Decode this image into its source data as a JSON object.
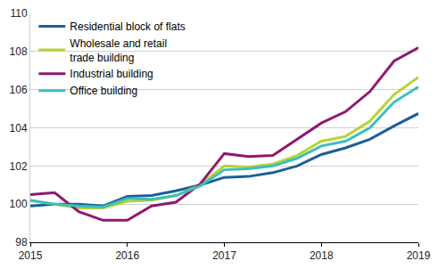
{
  "chart_data": {
    "type": "line",
    "categories": [
      "2015",
      null,
      null,
      null,
      "2016",
      null,
      null,
      null,
      "2017",
      null,
      null,
      null,
      "2018",
      null,
      null,
      null,
      "2019"
    ],
    "series": [
      {
        "name": "Residential block of flats",
        "color": "#1c5f98",
        "values": [
          99.9,
          100.0,
          100.0,
          99.9,
          100.4,
          100.45,
          100.7,
          101.0,
          101.4,
          101.45,
          101.65,
          102.0,
          102.6,
          102.95,
          103.4,
          104.1,
          104.75
        ]
      },
      {
        "name": "Wholesale and retail\ntrade building",
        "color": "#b7d334",
        "values": [
          100.2,
          100.0,
          99.8,
          99.8,
          100.15,
          100.2,
          100.45,
          101.0,
          102.0,
          101.95,
          102.1,
          102.55,
          103.3,
          103.55,
          104.35,
          105.75,
          106.65
        ]
      },
      {
        "name": "Industrial building",
        "color": "#8e1a6f",
        "values": [
          100.5,
          100.6,
          99.6,
          99.15,
          99.15,
          99.9,
          100.1,
          101.05,
          102.65,
          102.5,
          102.55,
          103.4,
          104.25,
          104.85,
          105.9,
          107.5,
          108.2
        ]
      },
      {
        "name": "Office building",
        "color": "#3bbfbf",
        "values": [
          100.2,
          100.0,
          99.9,
          99.85,
          100.3,
          100.25,
          100.45,
          100.95,
          101.8,
          101.85,
          102.0,
          102.4,
          103.05,
          103.3,
          104.0,
          105.35,
          106.15
        ]
      }
    ],
    "ylim": [
      98,
      110
    ],
    "yticks": [
      98,
      100,
      102,
      104,
      106,
      108,
      110
    ],
    "grid": true,
    "legend": "top-left"
  }
}
